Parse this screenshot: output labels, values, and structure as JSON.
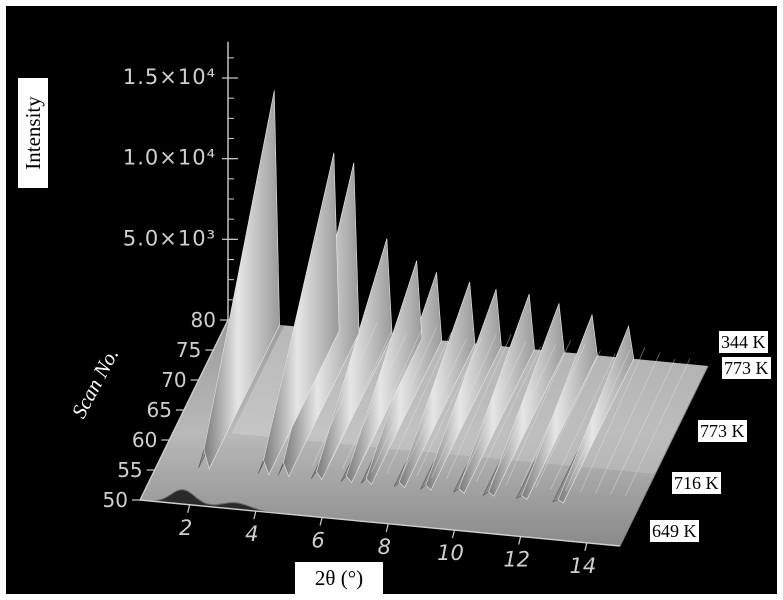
{
  "chart_data": {
    "type": "surface",
    "title": "",
    "xlabel": "2θ (°)",
    "ylabel": "Scan No.",
    "zlabel": "Intensity",
    "x_ticks": [
      "2",
      "4",
      "6",
      "8",
      "10",
      "12",
      "14"
    ],
    "y_ticks": [
      "50",
      "55",
      "60",
      "65",
      "70",
      "75",
      "80"
    ],
    "z_ticks": [
      "5.0×10³",
      "1.0×10⁴",
      "1.5×10⁴"
    ],
    "xlim": [
      0.5,
      15
    ],
    "ylim": [
      50,
      80
    ],
    "zlim": [
      0,
      15000
    ],
    "temperature_labels": [
      "344 K",
      "773 K",
      "773 K",
      "716 K",
      "649 K"
    ],
    "peaks": [
      {
        "two_theta": 1.9,
        "intensity": 14500
      },
      {
        "two_theta": 3.7,
        "intensity": 11000
      },
      {
        "two_theta": 4.3,
        "intensity": 10500
      },
      {
        "two_theta": 5.3,
        "intensity": 6000
      },
      {
        "two_theta": 6.2,
        "intensity": 4800
      },
      {
        "two_theta": 6.8,
        "intensity": 4200
      },
      {
        "two_theta": 7.8,
        "intensity": 3800
      },
      {
        "two_theta": 8.6,
        "intensity": 3500
      },
      {
        "two_theta": 9.6,
        "intensity": 3400
      },
      {
        "two_theta": 10.5,
        "intensity": 3000
      },
      {
        "two_theta": 11.5,
        "intensity": 2500
      },
      {
        "two_theta": 12.6,
        "intensity": 2000
      }
    ],
    "grid": false,
    "colors": {
      "background": "#000000",
      "surface": "#c8c8c8",
      "axis": "#cfcfcf"
    }
  }
}
